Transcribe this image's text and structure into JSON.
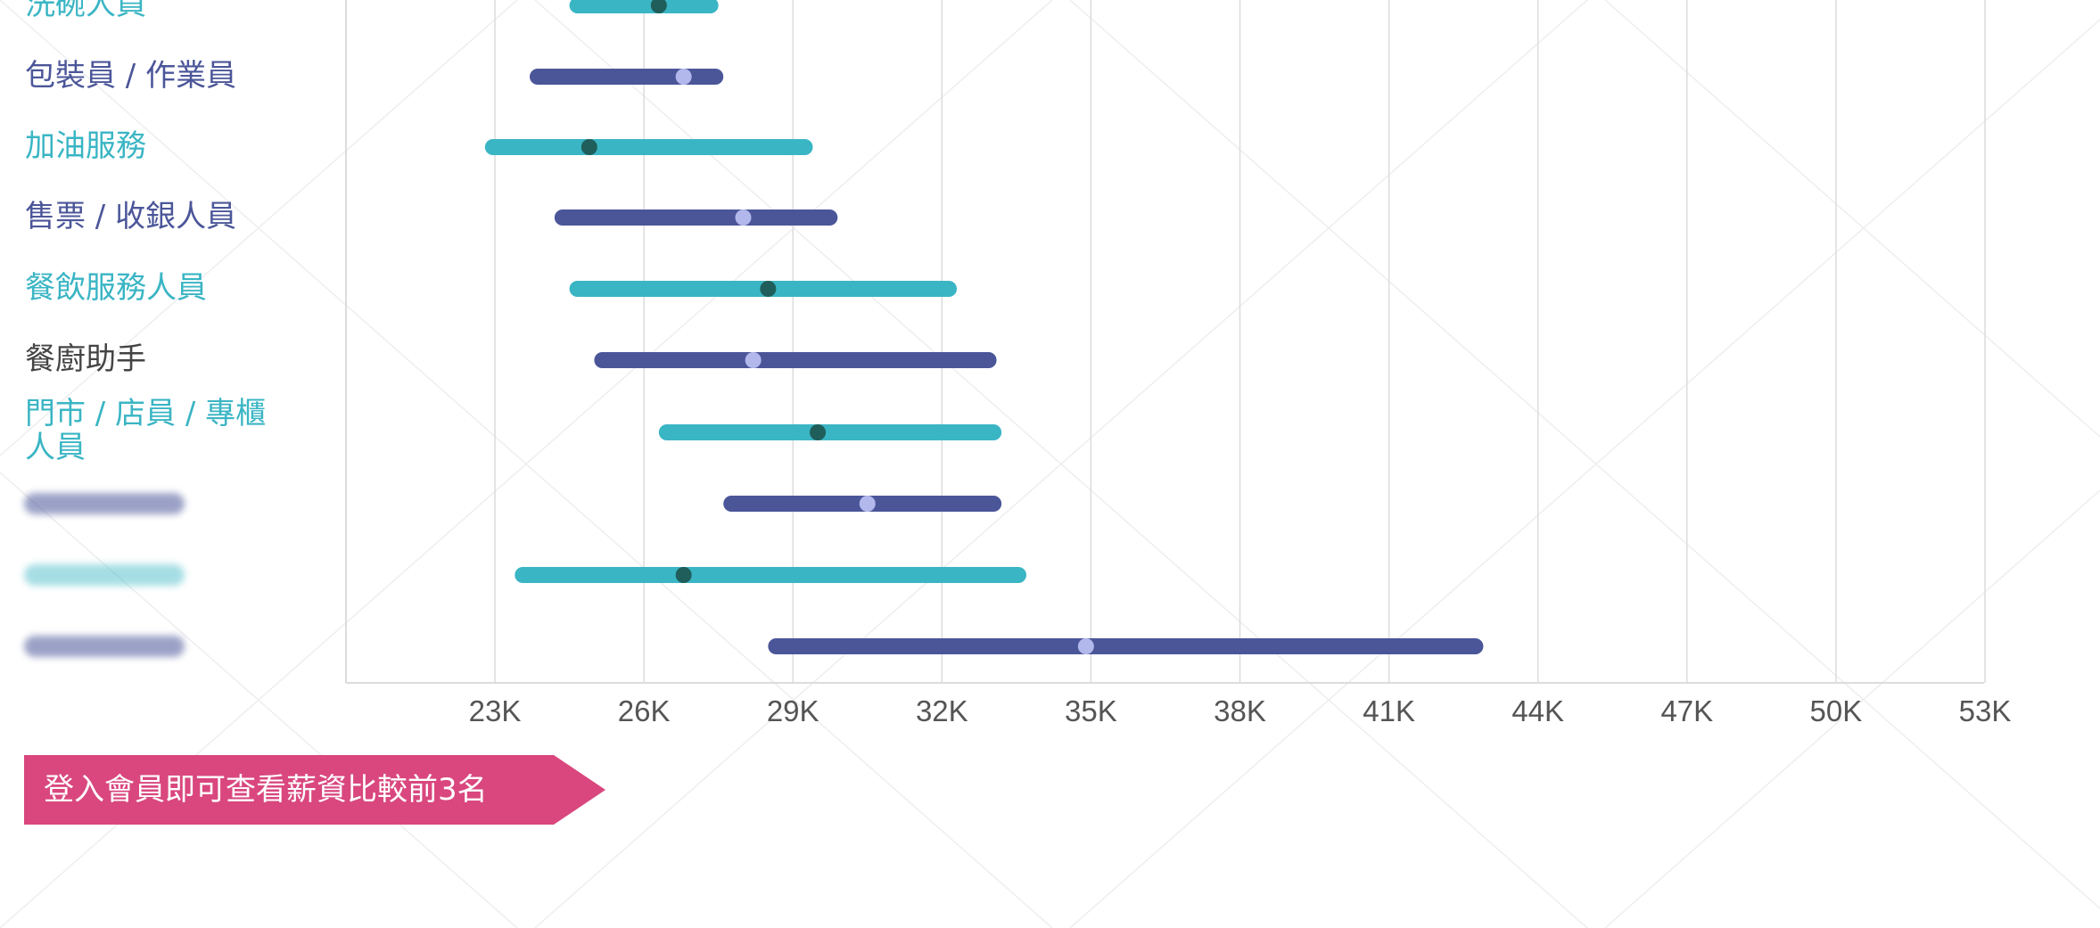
{
  "colors": {
    "navy_bar": "#4b5699",
    "teal_bar": "#3ab5c4",
    "navy_marker": "#b3b8ec",
    "teal_marker": "#1f5e5a",
    "navy_label": "#4b5699",
    "teal_label": "#3ab5c4",
    "dark_label": "#444444",
    "grid": "#dcdcdc",
    "banner": "#d9477e"
  },
  "chart_data": {
    "type": "range",
    "x_tick_labels": [
      "23K",
      "26K",
      "29K",
      "32K",
      "35K",
      "38K",
      "41K",
      "44K",
      "47K",
      "50K",
      "53K"
    ],
    "x_ticks": [
      23,
      26,
      29,
      32,
      35,
      38,
      41,
      44,
      47,
      50,
      53
    ],
    "xlim": [
      20,
      53
    ],
    "unit": "K",
    "grid": true,
    "rows": [
      {
        "label": "洗碗人員",
        "low": 24.5,
        "high": 27.5,
        "median": 26.3,
        "color": "teal",
        "label_color": "teal",
        "blurred": false,
        "cut_off_top": true
      },
      {
        "label": "包裝員 / 作業員",
        "low": 23.7,
        "high": 27.6,
        "median": 26.8,
        "color": "navy",
        "label_color": "navy",
        "blurred": false
      },
      {
        "label": "加油服務",
        "low": 22.8,
        "high": 29.4,
        "median": 24.9,
        "color": "teal",
        "label_color": "teal",
        "blurred": false
      },
      {
        "label": "售票 / 收銀人員",
        "low": 24.2,
        "high": 29.9,
        "median": 28.0,
        "color": "navy",
        "label_color": "navy",
        "blurred": false
      },
      {
        "label": "餐飲服務人員",
        "low": 24.5,
        "high": 32.3,
        "median": 28.5,
        "color": "teal",
        "label_color": "teal",
        "blurred": false
      },
      {
        "label": "餐廚助手",
        "low": 25.0,
        "high": 33.1,
        "median": 28.2,
        "color": "navy",
        "label_color": "dark",
        "blurred": false
      },
      {
        "label": "門市 / 店員 / 專櫃人員",
        "low": 26.3,
        "high": 33.2,
        "median": 29.5,
        "color": "teal",
        "label_color": "teal",
        "blurred": false
      },
      {
        "label": "",
        "low": 27.6,
        "high": 33.2,
        "median": 30.5,
        "color": "navy",
        "label_color": "navy",
        "blurred": true
      },
      {
        "label": "",
        "low": 23.4,
        "high": 33.7,
        "median": 26.8,
        "color": "teal",
        "label_color": "teal",
        "blurred": true
      },
      {
        "label": "",
        "low": 28.5,
        "high": 42.9,
        "median": 34.9,
        "color": "navy",
        "label_color": "navy",
        "blurred": true
      }
    ]
  },
  "banner": {
    "text": "登入會員即可查看薪資比較前3名"
  }
}
